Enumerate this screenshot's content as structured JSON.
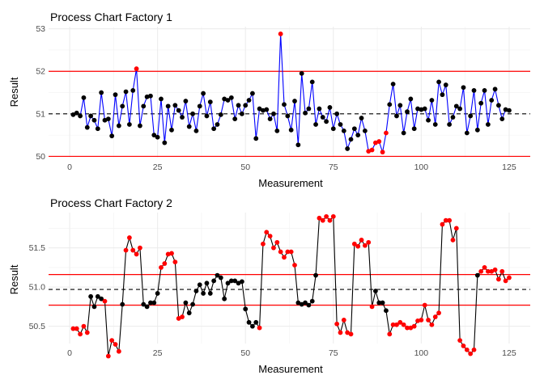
{
  "chart_data": [
    {
      "type": "line",
      "title": "Process Chart Factory 1",
      "xlabel": "Measurement",
      "ylabel": "Result",
      "xlim": [
        -6,
        131
      ],
      "ylim": [
        49.97,
        53.05
      ],
      "xticks": [
        0,
        25,
        50,
        75,
        100,
        125
      ],
      "yticks": [
        50,
        51,
        52,
        53
      ],
      "grid": true,
      "center_line": 51.0,
      "control_limits": [
        50.0,
        52.0
      ],
      "line_color": "#0000ff",
      "limit_color": "#ff0000",
      "point_color_in": "#000000",
      "point_color_out": "#ff0000",
      "x": [
        1,
        2,
        3,
        4,
        5,
        6,
        7,
        8,
        9,
        10,
        11,
        12,
        13,
        14,
        15,
        16,
        17,
        18,
        19,
        20,
        21,
        22,
        23,
        24,
        25,
        26,
        27,
        28,
        29,
        30,
        31,
        32,
        33,
        34,
        35,
        36,
        37,
        38,
        39,
        40,
        41,
        42,
        43,
        44,
        45,
        46,
        47,
        48,
        49,
        50,
        51,
        52,
        53,
        54,
        55,
        56,
        57,
        58,
        59,
        60,
        61,
        62,
        63,
        64,
        65,
        66,
        67,
        68,
        69,
        70,
        71,
        72,
        73,
        74,
        75,
        76,
        77,
        78,
        79,
        80,
        81,
        82,
        83,
        84,
        85,
        86,
        87,
        88,
        89,
        90,
        91,
        92,
        93,
        94,
        95,
        96,
        97,
        98,
        99,
        100,
        101,
        102,
        103,
        104,
        105,
        106,
        107,
        108,
        109,
        110,
        111,
        112,
        113,
        114,
        115,
        116,
        117,
        118,
        119,
        120,
        121,
        122,
        123,
        124,
        125
      ],
      "values": [
        50.98,
        51.02,
        50.95,
        51.38,
        50.68,
        50.95,
        50.85,
        50.65,
        51.5,
        50.85,
        50.88,
        50.48,
        51.45,
        50.72,
        51.18,
        51.52,
        50.75,
        51.55,
        52.06,
        50.72,
        51.18,
        51.4,
        51.42,
        50.5,
        50.45,
        51.35,
        50.32,
        51.18,
        50.62,
        51.2,
        51.08,
        50.92,
        51.3,
        50.7,
        51.0,
        50.6,
        51.18,
        51.48,
        50.95,
        51.28,
        50.65,
        50.75,
        50.98,
        51.35,
        51.32,
        51.38,
        50.88,
        51.2,
        51.0,
        51.2,
        51.32,
        51.48,
        50.42,
        51.12,
        51.08,
        51.1,
        50.88,
        51.0,
        50.6,
        52.88,
        51.22,
        50.95,
        50.62,
        51.3,
        50.27,
        51.95,
        51.02,
        51.12,
        51.75,
        50.75,
        51.12,
        50.92,
        50.82,
        51.15,
        50.65,
        51.0,
        50.75,
        50.6,
        50.18,
        50.4,
        50.65,
        50.5,
        50.9,
        50.6,
        50.12,
        50.15,
        50.32,
        50.35,
        50.1,
        50.55,
        51.22,
        51.7,
        50.95,
        51.2,
        50.55,
        51.05,
        51.35,
        50.65,
        51.12,
        51.1,
        51.12,
        50.85,
        51.32,
        50.75,
        51.75,
        51.45,
        51.68,
        50.75,
        50.92,
        51.18,
        51.12,
        51.62,
        50.55,
        50.95,
        51.55,
        50.62,
        51.25,
        51.55,
        50.75,
        51.32,
        51.58,
        51.2,
        50.88,
        51.1,
        51.08
      ],
      "out_of_control": [
        19,
        60,
        85,
        86,
        87,
        88,
        89,
        90
      ]
    },
    {
      "type": "line",
      "title": "Process Chart Factory 2",
      "xlabel": "Measurement",
      "ylabel": "Result",
      "xlim": [
        -6,
        131
      ],
      "ylim": [
        50.28,
        51.95
      ],
      "xticks": [
        0,
        25,
        50,
        75,
        100,
        125
      ],
      "yticks": [
        50.5,
        51.0,
        51.5
      ],
      "ytick_labels": [
        "50.5",
        "51.0",
        "51.5"
      ],
      "grid": true,
      "center_line": 50.97,
      "control_limits": [
        50.77,
        51.16
      ],
      "line_color": "#000000",
      "limit_color": "#ff0000",
      "point_color_in": "#000000",
      "point_color_out": "#ff0000",
      "x": [
        1,
        2,
        3,
        4,
        5,
        6,
        7,
        8,
        9,
        10,
        11,
        12,
        13,
        14,
        15,
        16,
        17,
        18,
        19,
        20,
        21,
        22,
        23,
        24,
        25,
        26,
        27,
        28,
        29,
        30,
        31,
        32,
        33,
        34,
        35,
        36,
        37,
        38,
        39,
        40,
        41,
        42,
        43,
        44,
        45,
        46,
        47,
        48,
        49,
        50,
        51,
        52,
        53,
        54,
        55,
        56,
        57,
        58,
        59,
        60,
        61,
        62,
        63,
        64,
        65,
        66,
        67,
        68,
        69,
        70,
        71,
        72,
        73,
        74,
        75,
        76,
        77,
        78,
        79,
        80,
        81,
        82,
        83,
        84,
        85,
        86,
        87,
        88,
        89,
        90,
        91,
        92,
        93,
        94,
        95,
        96,
        97,
        98,
        99,
        100,
        101,
        102,
        103,
        104,
        105,
        106,
        107,
        108,
        109,
        110,
        111,
        112,
        113,
        114,
        115,
        116,
        117,
        118,
        119,
        120,
        121,
        122,
        123,
        124,
        125
      ],
      "values": [
        50.47,
        50.47,
        50.4,
        50.5,
        50.42,
        50.88,
        50.75,
        50.88,
        50.85,
        50.82,
        50.12,
        50.32,
        50.27,
        50.18,
        50.78,
        51.47,
        51.63,
        51.47,
        51.42,
        51.5,
        50.78,
        50.75,
        50.8,
        50.8,
        50.92,
        51.25,
        51.3,
        51.42,
        51.43,
        51.32,
        50.6,
        50.62,
        50.8,
        50.67,
        50.78,
        50.95,
        51.03,
        50.92,
        51.05,
        50.92,
        51.08,
        51.15,
        51.12,
        50.85,
        51.05,
        51.08,
        51.08,
        51.05,
        51.07,
        50.72,
        50.55,
        50.5,
        50.55,
        50.48,
        51.55,
        51.7,
        51.65,
        51.5,
        51.57,
        51.45,
        51.38,
        51.45,
        51.45,
        51.28,
        50.8,
        50.78,
        50.8,
        50.77,
        50.82,
        51.15,
        51.88,
        51.85,
        51.9,
        51.85,
        51.9,
        50.53,
        50.42,
        50.58,
        50.42,
        50.4,
        51.55,
        51.52,
        51.6,
        51.53,
        51.57,
        50.75,
        50.95,
        50.8,
        50.8,
        50.7,
        50.4,
        50.52,
        50.52,
        50.55,
        50.52,
        50.48,
        50.48,
        50.5,
        50.57,
        50.58,
        50.77,
        50.58,
        50.52,
        50.62,
        50.67,
        51.8,
        51.85,
        51.85,
        51.6,
        51.75,
        50.32,
        50.25,
        50.2,
        50.15,
        50.2,
        51.15,
        51.2,
        51.25,
        51.2,
        51.2,
        51.22,
        51.1,
        51.2,
        51.08,
        51.12
      ],
      "out_of_control": [
        1,
        2,
        3,
        4,
        5,
        10,
        11,
        12,
        13,
        14,
        16,
        17,
        18,
        19,
        20,
        26,
        27,
        28,
        29,
        30,
        31,
        32,
        54,
        55,
        56,
        57,
        58,
        59,
        60,
        61,
        62,
        63,
        64,
        71,
        72,
        73,
        74,
        75,
        76,
        77,
        78,
        79,
        80,
        81,
        82,
        83,
        84,
        85,
        86,
        91,
        92,
        93,
        94,
        95,
        96,
        97,
        98,
        99,
        100,
        101,
        102,
        103,
        104,
        105,
        106,
        107,
        108,
        109,
        110,
        111,
        112,
        113,
        114,
        115,
        117,
        118,
        119,
        120,
        121,
        122,
        123,
        124,
        125
      ]
    }
  ]
}
